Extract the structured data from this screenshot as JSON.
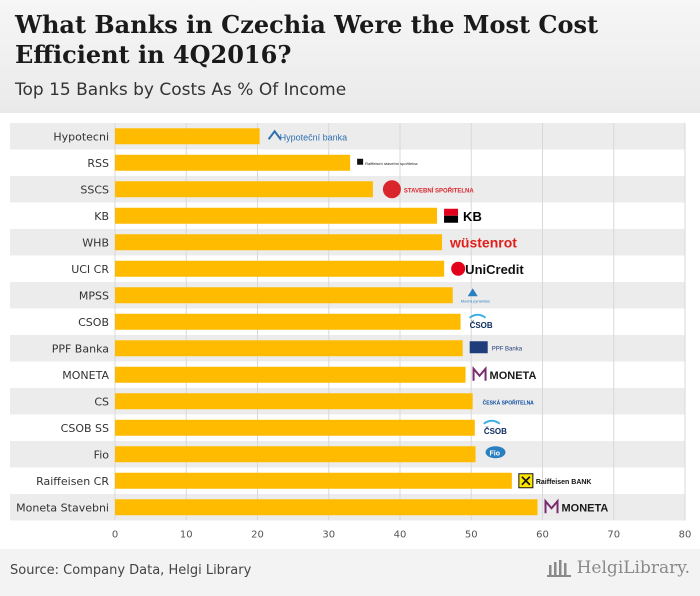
{
  "header": {
    "title": "What Banks in Czechia Were the Most Cost Efficient in 4Q2016?",
    "subtitle": "Top 15 Banks by Costs As % Of Income"
  },
  "footer": {
    "source": "Source: Company Data, Helgi Library",
    "brand": "HelgiLibrary."
  },
  "colors": {
    "bar": "#ffbb00",
    "row_band": "#ececec",
    "grid": "#d8d8d8"
  },
  "chart_data": {
    "type": "bar",
    "orientation": "horizontal",
    "title": "What Banks in Czechia Were the Most Cost Efficient in 4Q2016?",
    "subtitle": "Top 15 Banks by Costs As % Of Income",
    "xlabel": "",
    "ylabel": "",
    "xlim": [
      0,
      80
    ],
    "xticks": [
      0,
      10,
      20,
      30,
      40,
      50,
      60,
      70,
      80
    ],
    "grid": true,
    "categories": [
      "Hypotecni",
      "RSS",
      "SSCS",
      "KB",
      "WHB",
      "UCI CR",
      "MPSS",
      "CSOB",
      "PPF Banka",
      "MONETA",
      "CS",
      "CSOB SS",
      "Fio",
      "Raiffeisen CR",
      "Moneta Stavebni"
    ],
    "values": [
      20.3,
      33.0,
      36.2,
      45.2,
      45.9,
      46.2,
      47.4,
      48.5,
      48.8,
      49.2,
      50.2,
      50.5,
      50.6,
      55.7,
      59.3
    ],
    "logos": [
      {
        "name": "Hypoteční banka",
        "style": "hypotecni"
      },
      {
        "name": "Raiffeisen stavební spořitelna",
        "style": "rss"
      },
      {
        "name": "STAVEBNÍ SPOŘITELNA",
        "style": "sscs"
      },
      {
        "name": "KB",
        "style": "kb"
      },
      {
        "name": "wüstenrot",
        "style": "whb"
      },
      {
        "name": "UniCredit",
        "style": "uci"
      },
      {
        "name": "Modrá pyramida",
        "style": "mpss"
      },
      {
        "name": "ČSOB",
        "style": "csob"
      },
      {
        "name": "PPF Banka",
        "style": "ppf"
      },
      {
        "name": "MONETA",
        "style": "moneta"
      },
      {
        "name": "ČESKÁ SPOŘITELNA",
        "style": "cs"
      },
      {
        "name": "ČSOB",
        "style": "csobss"
      },
      {
        "name": "Fio",
        "style": "fio"
      },
      {
        "name": "Raiffeisen BANK",
        "style": "rcr"
      },
      {
        "name": "MONETA",
        "style": "monetass"
      }
    ]
  }
}
